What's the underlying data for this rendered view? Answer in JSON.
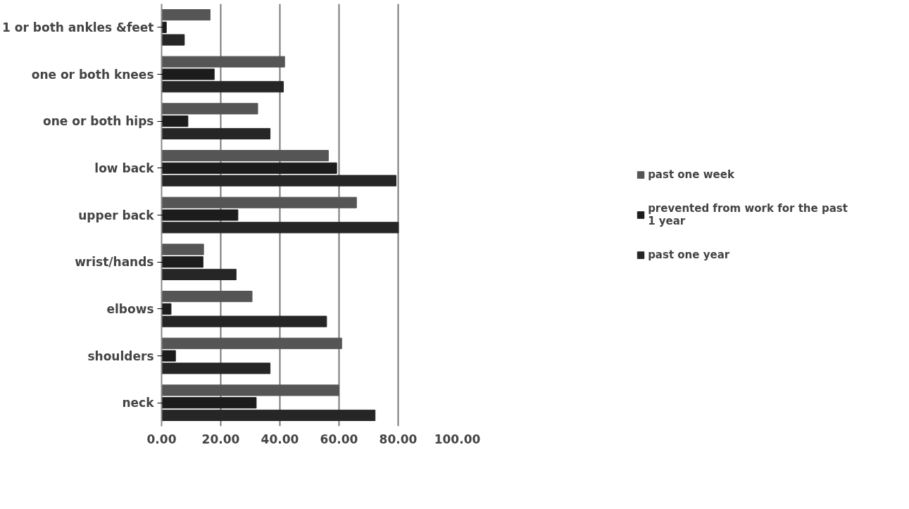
{
  "chart_data": {
    "type": "bar",
    "orientation": "horizontal",
    "categories": [
      "1 or both ankles &feet",
      "one or both knees",
      "one or both hips",
      "low back",
      "upper back",
      "wrist/hands",
      "elbows",
      "shoulders",
      "neck"
    ],
    "series": [
      {
        "name": "past one week",
        "color": "#555555",
        "values": [
          16.4,
          41.6,
          32.5,
          56.4,
          65.9,
          14.2,
          30.6,
          60.9,
          60.0
        ]
      },
      {
        "name": "prevented from work for the past 1 year",
        "color": "#1c1c1c",
        "values": [
          1.6,
          17.8,
          8.9,
          59.2,
          25.8,
          14.0,
          3.2,
          4.7,
          32.0
        ]
      },
      {
        "name": "past one year",
        "color": "#262626",
        "values": [
          7.7,
          41.2,
          36.7,
          79.3,
          80.1,
          25.2,
          55.8,
          36.7,
          72.2
        ]
      }
    ],
    "xlim": [
      0,
      100
    ],
    "xticks": [
      {
        "value": 0,
        "label": "0.00"
      },
      {
        "value": 20,
        "label": "20.00"
      },
      {
        "value": 40,
        "label": "40.00"
      },
      {
        "value": 60,
        "label": "60.00"
      },
      {
        "value": 80,
        "label": "80.00"
      },
      {
        "value": 100,
        "label": "100.00"
      }
    ],
    "grid": "x",
    "legend": "right"
  }
}
